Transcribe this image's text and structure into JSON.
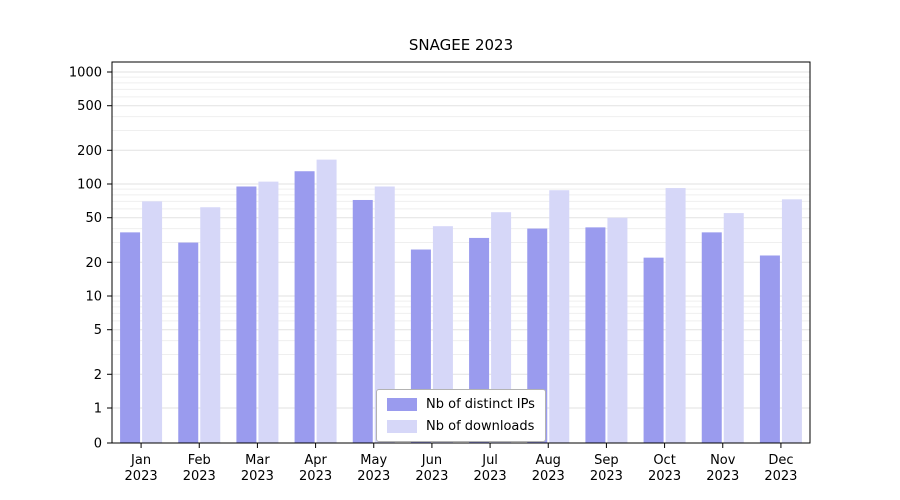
{
  "title": "SNAGEE 2023",
  "chart_data": {
    "type": "bar",
    "title": "SNAGEE 2023",
    "xlabel": "",
    "ylabel": "",
    "yscale": "symlog",
    "yticks": [
      0,
      1,
      2,
      5,
      10,
      20,
      50,
      100,
      200,
      500,
      1000
    ],
    "ylim": [
      0,
      1300
    ],
    "grid": true,
    "legend_position": "lower center",
    "categories": [
      "Jan 2023",
      "Feb 2023",
      "Mar 2023",
      "Apr 2023",
      "May 2023",
      "Jun 2023",
      "Jul 2023",
      "Aug 2023",
      "Sep 2023",
      "Oct 2023",
      "Nov 2023",
      "Dec 2023"
    ],
    "series": [
      {
        "name": "Nb of distinct IPs",
        "color": "#9a9bee",
        "values": [
          37,
          30,
          95,
          130,
          72,
          26,
          33,
          40,
          41,
          22,
          37,
          23
        ]
      },
      {
        "name": "Nb of downloads",
        "color": "#d6d7f8",
        "values": [
          70,
          62,
          105,
          165,
          95,
          42,
          56,
          88,
          50,
          92,
          55,
          73
        ]
      }
    ]
  }
}
